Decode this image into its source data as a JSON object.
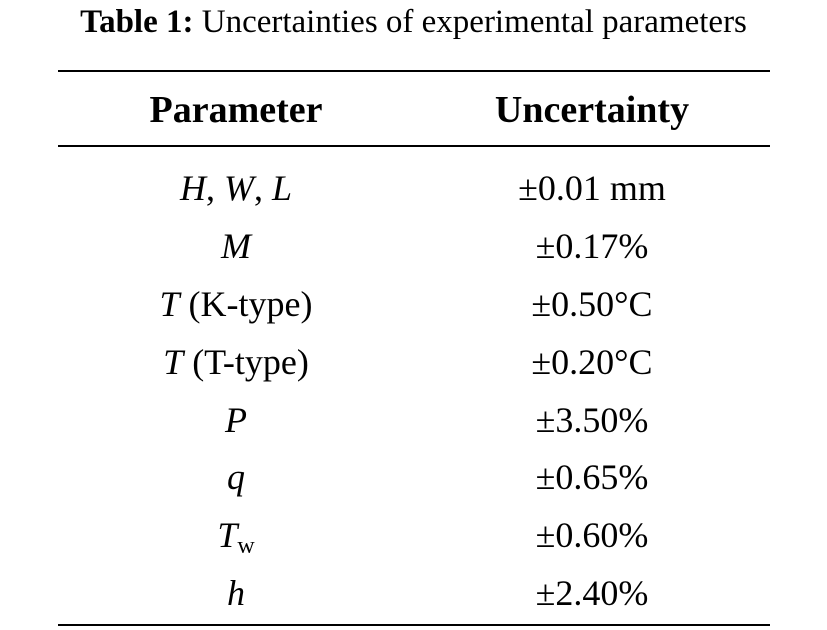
{
  "caption": {
    "label": "Table 1:",
    "text": " Uncertainties of experimental parameters"
  },
  "table": {
    "headers": [
      "Parameter",
      "Uncertainty"
    ],
    "rows": [
      {
        "symbol": "H",
        "sep1": ", ",
        "symbol2": "W",
        "sep2": ", ",
        "symbol3": "L",
        "note": "",
        "sub": "",
        "value": "±0.01 mm"
      },
      {
        "symbol": "M",
        "note": "",
        "sub": "",
        "value": "±0.17%"
      },
      {
        "symbol": "T",
        "note": " (K-type)",
        "sub": "",
        "value": "±0.50°C"
      },
      {
        "symbol": "T",
        "note": " (T-type)",
        "sub": "",
        "value": "±0.20°C"
      },
      {
        "symbol": "P",
        "note": "",
        "sub": "",
        "value": "±3.50%"
      },
      {
        "symbol": "q",
        "note": "",
        "sub": "",
        "value": "±0.65%"
      },
      {
        "symbol": "T",
        "note": "",
        "sub": "w",
        "value": "±0.60%"
      },
      {
        "symbol": "h",
        "note": "",
        "sub": "",
        "value": "±2.40%"
      }
    ]
  }
}
